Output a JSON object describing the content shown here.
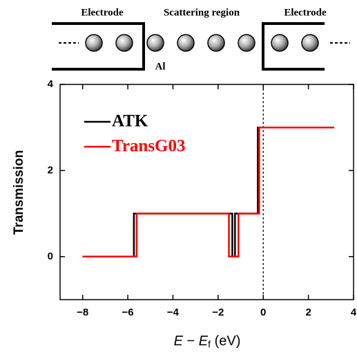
{
  "diagram": {
    "left_label": "Electrode",
    "middle_label": "Scattering region",
    "right_label": "Electrode",
    "atom_label": "Al"
  },
  "chart_data": {
    "type": "line",
    "y_label": "Transmission",
    "x_label_parts": [
      "E",
      " − ",
      "E",
      "f",
      " (eV)"
    ],
    "series": [
      {
        "name": "ATK",
        "color": "#000000",
        "x": [
          -8,
          -5.73,
          -5.73,
          -1.37,
          -1.37,
          -1.25,
          -1.25,
          -0.24,
          -0.24,
          3.14
        ],
        "values": [
          0,
          0,
          1,
          1,
          0,
          0,
          1,
          1,
          3,
          3
        ]
      },
      {
        "name": "TransG03",
        "color": "#ff0000",
        "x": [
          -8,
          -5.61,
          -5.61,
          -1.52,
          -1.52,
          -1.1,
          -1.1,
          -0.18,
          -0.18,
          3.14
        ],
        "values": [
          0,
          0,
          1,
          1,
          0,
          0,
          1,
          1,
          3,
          3
        ]
      }
    ],
    "xlim": [
      -9,
      4
    ],
    "ylim": [
      -1,
      4
    ],
    "xticks": [
      {
        "value": -8,
        "label": "−8"
      },
      {
        "value": -6,
        "label": "−6"
      },
      {
        "value": -4,
        "label": "−4"
      },
      {
        "value": -2,
        "label": "−2"
      },
      0,
      2,
      4
    ],
    "yticks": [
      0,
      2,
      4
    ],
    "reference_line_x": 0,
    "legend": "upper-left"
  }
}
